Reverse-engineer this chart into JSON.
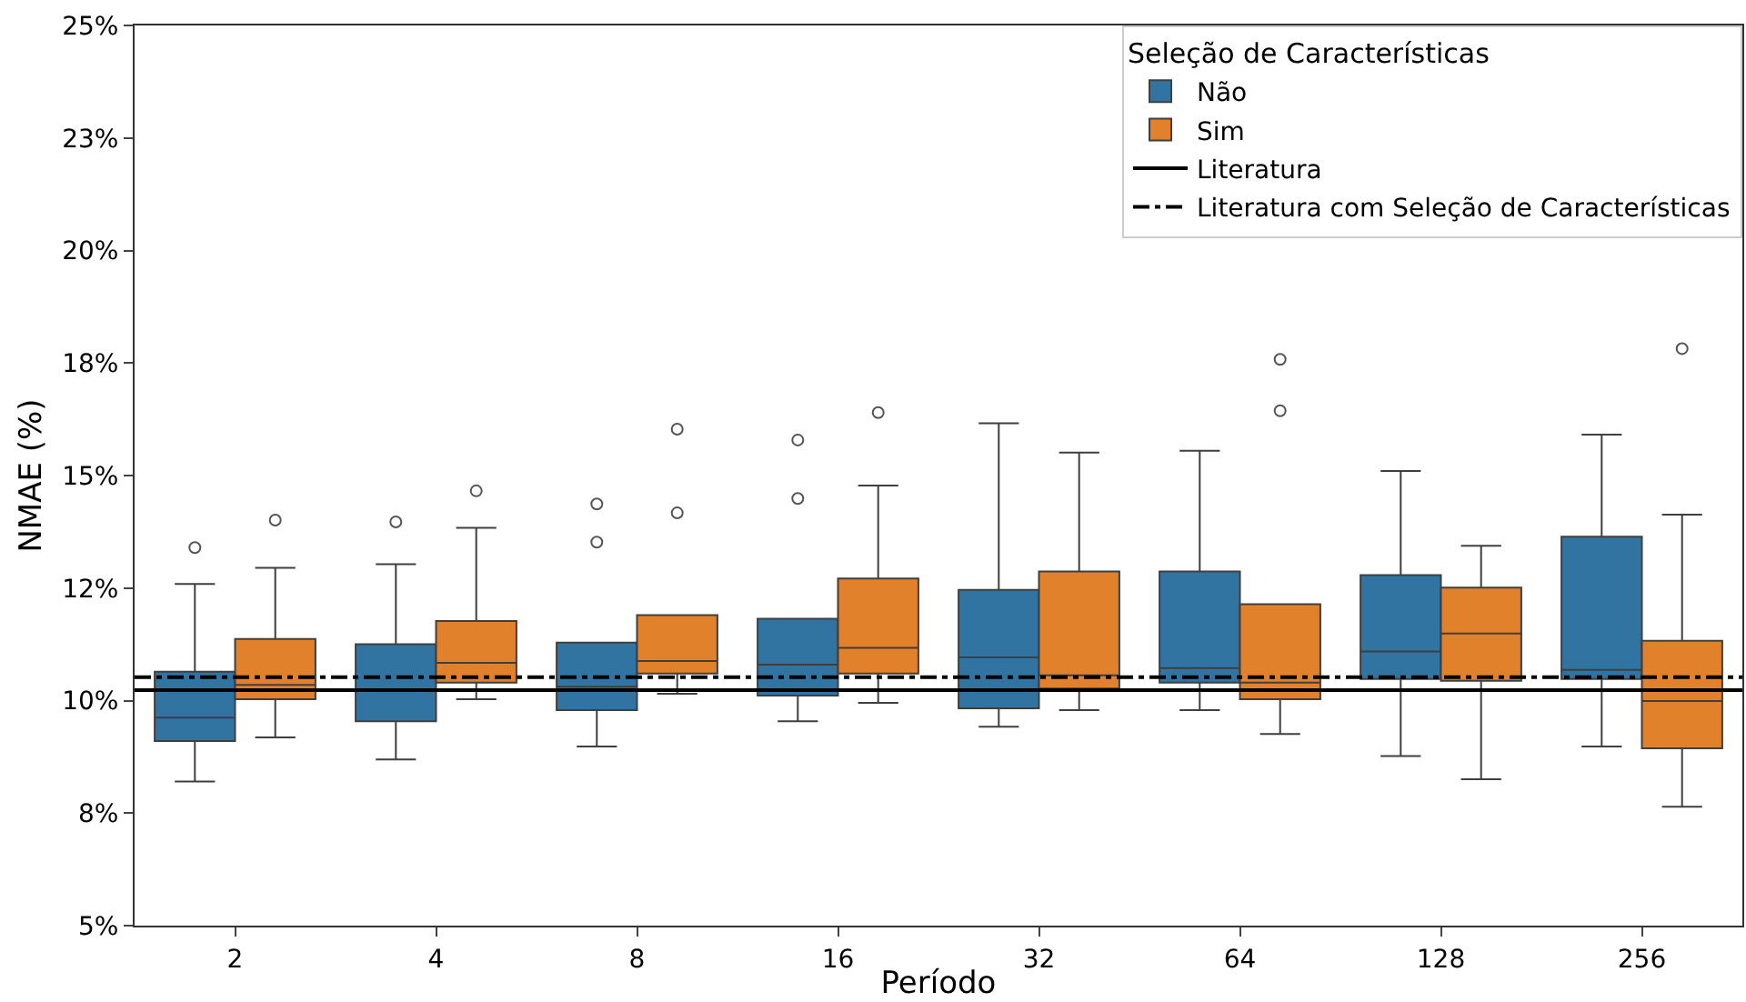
{
  "chart_data": {
    "type": "box",
    "xlabel": "Período",
    "ylabel": "NMAE (%)",
    "legend_title": "Seleção de Características",
    "legend": "top right",
    "grid": false,
    "categories": [
      "2",
      "4",
      "8",
      "16",
      "32",
      "64",
      "128",
      "256"
    ],
    "ylim": [
      5,
      25
    ],
    "yticks": [
      {
        "value": 5,
        "label": "5%"
      },
      {
        "value": 7.5,
        "label": "8%"
      },
      {
        "value": 10,
        "label": "10%"
      },
      {
        "value": 12.5,
        "label": "12%"
      },
      {
        "value": 15,
        "label": "15%"
      },
      {
        "value": 17.5,
        "label": "18%"
      },
      {
        "value": 20,
        "label": "20%"
      },
      {
        "value": 22.5,
        "label": "23%"
      },
      {
        "value": 25,
        "label": "25%"
      }
    ],
    "series": [
      {
        "name": "Não",
        "color": "#3274a1",
        "boxes": [
          {
            "low": 8.2,
            "q1": 9.1,
            "median": 9.62,
            "q3": 10.64,
            "high": 12.59,
            "outliers": [
              13.4
            ]
          },
          {
            "low": 8.69,
            "q1": 9.54,
            "median": 10.23,
            "q3": 11.25,
            "high": 13.03,
            "outliers": [
              13.97
            ]
          },
          {
            "low": 8.98,
            "q1": 9.79,
            "median": 10.31,
            "q3": 11.29,
            "high": 11.29,
            "outliers": [
              14.37,
              13.52
            ]
          },
          {
            "low": 9.54,
            "q1": 10.11,
            "median": 10.8,
            "q3": 11.82,
            "high": 11.82,
            "outliers": [
              15.79,
              14.49
            ]
          },
          {
            "low": 9.42,
            "q1": 9.83,
            "median": 10.96,
            "q3": 12.46,
            "high": 16.16
          },
          {
            "low": 9.79,
            "q1": 10.4,
            "median": 10.72,
            "q3": 12.87,
            "high": 15.55
          },
          {
            "low": 8.77,
            "q1": 10.48,
            "median": 11.09,
            "q3": 12.79,
            "high": 15.1
          },
          {
            "low": 8.98,
            "q1": 10.48,
            "median": 10.68,
            "q3": 13.64,
            "high": 15.91
          }
        ]
      },
      {
        "name": "Sim",
        "color": "#e1812c",
        "boxes": [
          {
            "low": 9.18,
            "q1": 10.03,
            "median": 10.35,
            "q3": 11.37,
            "high": 12.95,
            "outliers": [
              14.01
            ]
          },
          {
            "low": 10.03,
            "q1": 10.4,
            "median": 10.84,
            "q3": 11.77,
            "high": 13.84,
            "outliers": [
              14.66
            ]
          },
          {
            "low": 10.15,
            "q1": 10.6,
            "median": 10.88,
            "q3": 11.9,
            "high": 11.9,
            "outliers": [
              16.03,
              14.17
            ]
          },
          {
            "low": 9.95,
            "q1": 10.6,
            "median": 11.17,
            "q3": 12.71,
            "high": 14.78,
            "outliers": [
              16.4
            ]
          },
          {
            "low": 9.79,
            "q1": 10.27,
            "median": 10.56,
            "q3": 12.87,
            "high": 15.51
          },
          {
            "low": 9.26,
            "q1": 10.03,
            "median": 10.4,
            "q3": 12.14,
            "high": 12.14,
            "outliers": [
              17.58,
              16.44
            ]
          },
          {
            "low": 8.25,
            "q1": 10.44,
            "median": 11.49,
            "q3": 12.51,
            "high": 13.44
          },
          {
            "low": 7.64,
            "q1": 8.94,
            "median": 9.99,
            "q3": 11.33,
            "high": 14.13,
            "outliers": [
              17.82
            ]
          }
        ]
      }
    ],
    "ref_lines": [
      {
        "axis": "y",
        "value": 10.23,
        "label": "Literatura",
        "color": "#000000",
        "line_style": "solid"
      },
      {
        "axis": "y",
        "value": 10.52,
        "label": "Literatura com Seleção de Características",
        "color": "#000000",
        "line_style": "dashdot"
      }
    ]
  }
}
